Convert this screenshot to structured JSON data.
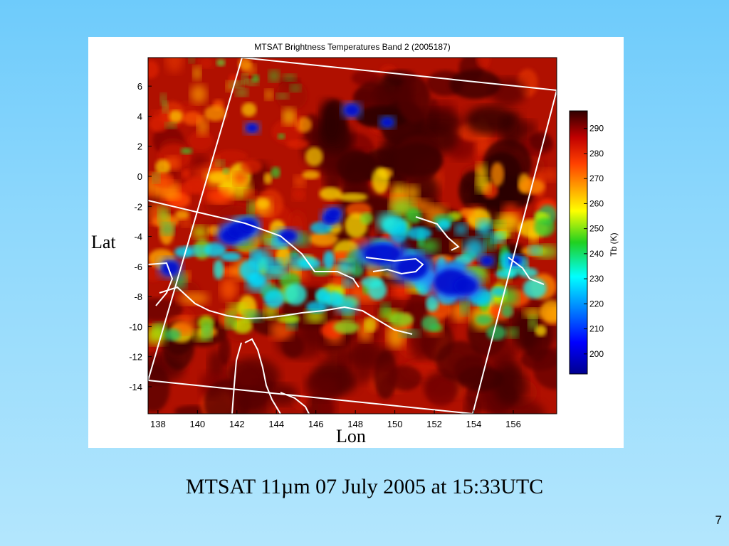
{
  "caption": "MTSAT 11µm 07 July 2005 at 15:33UTC",
  "slide_number": "7",
  "chart_data": {
    "type": "heatmap",
    "title": "MTSAT Brightness Temperatures Band 2 (2005187)",
    "xlabel": "Lon",
    "ylabel": "Lat",
    "x_ticks": [
      "138",
      "140",
      "142",
      "144",
      "146",
      "148",
      "150",
      "152",
      "154",
      "156"
    ],
    "x_tick_values": [
      138,
      140,
      142,
      144,
      146,
      148,
      150,
      152,
      154,
      156
    ],
    "y_ticks": [
      "6",
      "4",
      "2",
      "0",
      "-2",
      "-4",
      "-6",
      "-8",
      "-10",
      "-12",
      "-14"
    ],
    "y_tick_values": [
      6,
      4,
      2,
      0,
      -2,
      -4,
      -6,
      -8,
      -10,
      -12,
      -14
    ],
    "xlim": [
      137.5,
      158.2
    ],
    "ylim": [
      -15.8,
      7.9
    ],
    "colorbar": {
      "label": "Tb (K)",
      "ticks": [
        "290",
        "280",
        "270",
        "260",
        "250",
        "240",
        "230",
        "220",
        "210",
        "200"
      ],
      "tick_values": [
        290,
        280,
        270,
        260,
        250,
        240,
        230,
        220,
        210,
        200
      ],
      "range": [
        192,
        297
      ],
      "colormap": "jet"
    },
    "overlay_color": "#ffffff"
  }
}
